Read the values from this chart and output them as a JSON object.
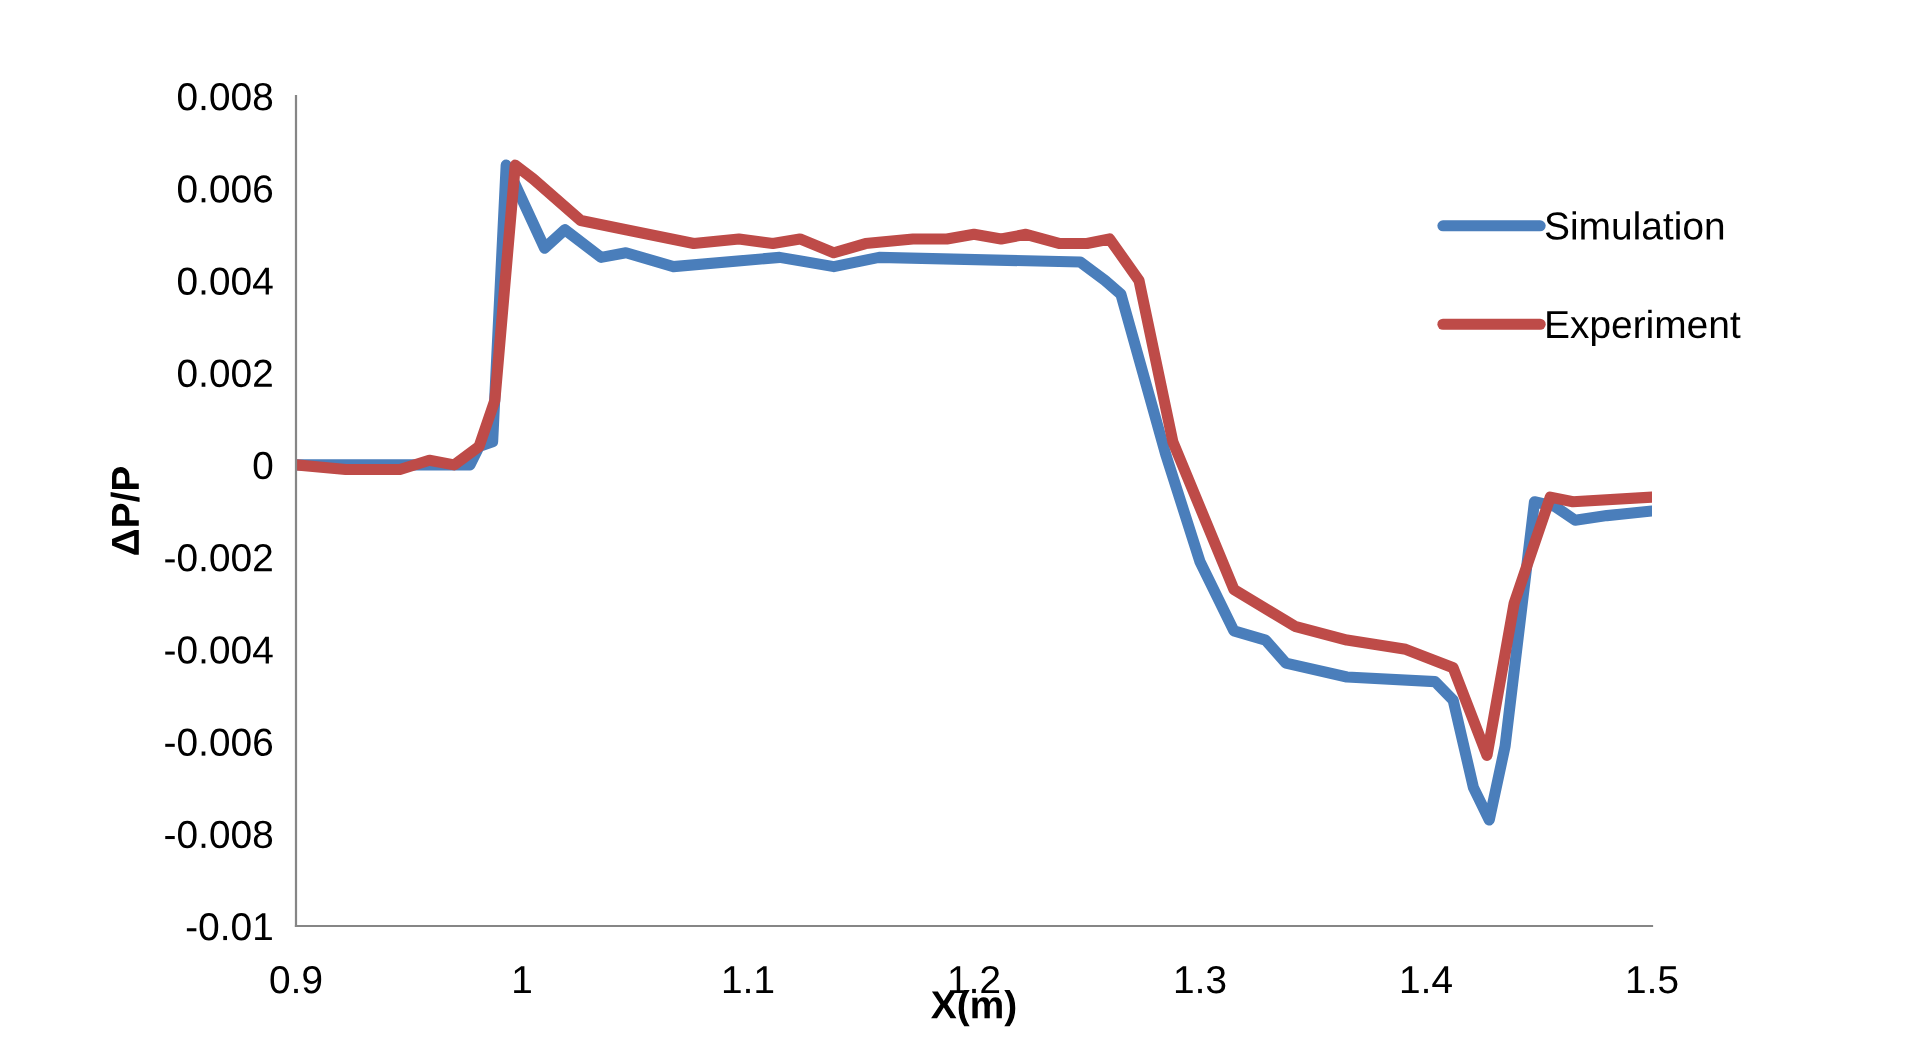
{
  "chart_data": {
    "type": "line",
    "xlabel": "X(m)",
    "ylabel": "ΔP/P",
    "xlim": [
      0.9,
      1.5
    ],
    "ylim": [
      -0.01,
      0.008
    ],
    "xticks": [
      0.9,
      1,
      1.1,
      1.2,
      1.3,
      1.4,
      1.5
    ],
    "yticks": [
      {
        "value": -0.01,
        "label": "-0.01"
      },
      {
        "value": -0.008,
        "label": "-0.008"
      },
      {
        "value": -0.006,
        "label": "-0.006"
      },
      {
        "value": -0.004,
        "label": "-0.004"
      },
      {
        "value": -0.002,
        "label": "-0.002"
      },
      {
        "value": 0,
        "label": "0"
      },
      {
        "value": 0.002,
        "label": "0.002"
      },
      {
        "value": 0.004,
        "label": "0.004"
      },
      {
        "value": 0.006,
        "label": "0.006"
      },
      {
        "value": 0.008,
        "label": "0.008"
      }
    ],
    "grid": false,
    "legend": "right",
    "marker": "none",
    "line_style": "solid",
    "series": [
      {
        "name": "Simulation",
        "color": "#4a7ebb",
        "x": [
          0.9,
          0.977,
          0.981,
          0.987,
          0.993,
          1.01,
          1.019,
          1.035,
          1.046,
          1.067,
          1.114,
          1.138,
          1.158,
          1.247,
          1.258,
          1.265,
          1.285,
          1.3,
          1.315,
          1.329,
          1.338,
          1.365,
          1.404,
          1.412,
          1.421,
          1.428,
          1.435,
          1.448,
          1.457,
          1.466,
          1.48,
          1.5
        ],
        "values": [
          0,
          0,
          0.0004,
          0.0005,
          0.0065,
          0.0047,
          0.0051,
          0.0045,
          0.0046,
          0.0043,
          0.0045,
          0.0043,
          0.0045,
          0.0044,
          0.004,
          0.0037,
          0.0002,
          -0.0021,
          -0.0036,
          -0.0038,
          -0.0043,
          -0.0046,
          -0.0047,
          -0.0051,
          -0.007,
          -0.0077,
          -0.0061,
          -0.0008,
          -0.0009,
          -0.0012,
          -0.0011,
          -0.001
        ]
      },
      {
        "name": "Experiment",
        "color": "#be4b48",
        "x": [
          0.9,
          0.922,
          0.946,
          0.959,
          0.97,
          0.981,
          0.988,
          0.997,
          1.005,
          1.026,
          1.046,
          1.076,
          1.096,
          1.111,
          1.123,
          1.138,
          1.152,
          1.173,
          1.188,
          1.2,
          1.212,
          1.223,
          1.238,
          1.25,
          1.26,
          1.273,
          1.288,
          1.315,
          1.342,
          1.365,
          1.391,
          1.412,
          1.427,
          1.439,
          1.455,
          1.465,
          1.5
        ],
        "values": [
          0,
          -0.0001,
          -0.0001,
          0.0001,
          0,
          0.0004,
          0.0014,
          0.0065,
          0.0062,
          0.0053,
          0.0051,
          0.0048,
          0.0049,
          0.0048,
          0.0049,
          0.0046,
          0.0048,
          0.0049,
          0.0049,
          0.005,
          0.0049,
          0.005,
          0.0048,
          0.0048,
          0.0049,
          0.004,
          0.0005,
          -0.0027,
          -0.0035,
          -0.0038,
          -0.004,
          -0.0044,
          -0.0063,
          -0.003,
          -0.0007,
          -0.0008,
          -0.0007
        ]
      }
    ]
  }
}
